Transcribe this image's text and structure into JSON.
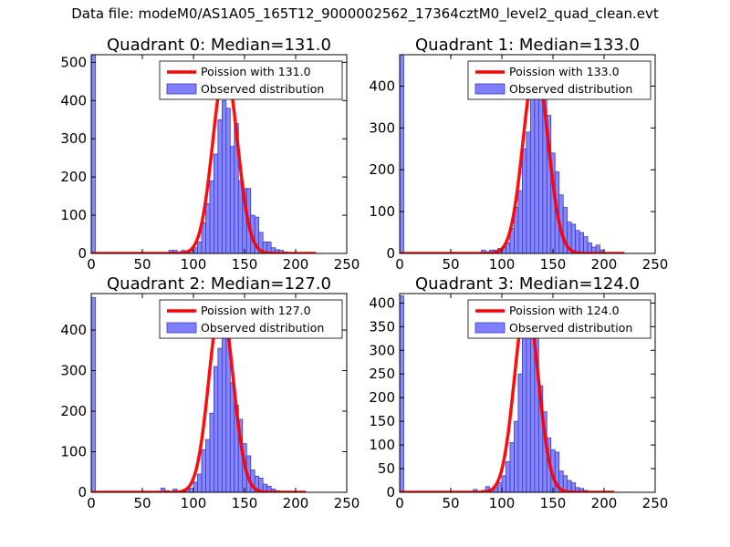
{
  "figure": {
    "suptitle": "Data file: modeM0/AS1A05_165T12_9000002562_17364cztM0_level2_quad_clean.evt",
    "colors": {
      "bar_fill": "#7f7fff",
      "bar_edge": "#3a3ac0",
      "poisson_line": "#ff0000",
      "axes": "#000000"
    }
  },
  "chart_data": [
    {
      "type": "bar",
      "title": "Quadrant 0: Median=131.0",
      "median": 131.0,
      "xlim": [
        0,
        250
      ],
      "ylim": [
        0,
        520
      ],
      "xticks": [
        0,
        50,
        100,
        150,
        200,
        250
      ],
      "yticks": [
        0,
        100,
        200,
        300,
        400,
        500
      ],
      "legend": {
        "position": "top-right",
        "line_label": "Poission with 131.0",
        "bar_label": "Observed distribution"
      },
      "bin_width": 4,
      "bins": [
        {
          "x": 0,
          "y": 520
        },
        {
          "x": 76,
          "y": 8
        },
        {
          "x": 80,
          "y": 8
        },
        {
          "x": 84,
          "y": 4
        },
        {
          "x": 88,
          "y": 8
        },
        {
          "x": 92,
          "y": 4
        },
        {
          "x": 96,
          "y": 8
        },
        {
          "x": 100,
          "y": 15
        },
        {
          "x": 104,
          "y": 30
        },
        {
          "x": 108,
          "y": 80
        },
        {
          "x": 112,
          "y": 130
        },
        {
          "x": 116,
          "y": 190
        },
        {
          "x": 120,
          "y": 260
        },
        {
          "x": 124,
          "y": 350
        },
        {
          "x": 128,
          "y": 400
        },
        {
          "x": 132,
          "y": 380
        },
        {
          "x": 136,
          "y": 280
        },
        {
          "x": 140,
          "y": 340
        },
        {
          "x": 144,
          "y": 190
        },
        {
          "x": 148,
          "y": 170
        },
        {
          "x": 152,
          "y": 170
        },
        {
          "x": 156,
          "y": 100
        },
        {
          "x": 160,
          "y": 95
        },
        {
          "x": 164,
          "y": 55
        },
        {
          "x": 168,
          "y": 30
        },
        {
          "x": 172,
          "y": 30
        },
        {
          "x": 176,
          "y": 15
        },
        {
          "x": 180,
          "y": 10
        },
        {
          "x": 184,
          "y": 8
        },
        {
          "x": 188,
          "y": 4
        }
      ],
      "poisson": {
        "mean": 131.0,
        "peak": 485,
        "x_range": [
          0,
          220
        ]
      }
    },
    {
      "type": "bar",
      "title": "Quadrant 1: Median=133.0",
      "median": 133.0,
      "xlim": [
        0,
        250
      ],
      "ylim": [
        0,
        475
      ],
      "xticks": [
        0,
        50,
        100,
        150,
        200,
        250
      ],
      "yticks": [
        0,
        100,
        200,
        300,
        400
      ],
      "legend": {
        "position": "top-right",
        "line_label": "Poission with 133.0",
        "bar_label": "Observed distribution"
      },
      "bin_width": 4,
      "bins": [
        {
          "x": 0,
          "y": 475
        },
        {
          "x": 80,
          "y": 8
        },
        {
          "x": 84,
          "y": 4
        },
        {
          "x": 88,
          "y": 8
        },
        {
          "x": 92,
          "y": 8
        },
        {
          "x": 96,
          "y": 12
        },
        {
          "x": 100,
          "y": 15
        },
        {
          "x": 104,
          "y": 25
        },
        {
          "x": 108,
          "y": 60
        },
        {
          "x": 112,
          "y": 110
        },
        {
          "x": 116,
          "y": 150
        },
        {
          "x": 120,
          "y": 250
        },
        {
          "x": 124,
          "y": 290
        },
        {
          "x": 128,
          "y": 410
        },
        {
          "x": 132,
          "y": 460
        },
        {
          "x": 136,
          "y": 440
        },
        {
          "x": 140,
          "y": 380
        },
        {
          "x": 144,
          "y": 330
        },
        {
          "x": 148,
          "y": 240
        },
        {
          "x": 152,
          "y": 195
        },
        {
          "x": 156,
          "y": 140
        },
        {
          "x": 160,
          "y": 110
        },
        {
          "x": 164,
          "y": 75
        },
        {
          "x": 168,
          "y": 70
        },
        {
          "x": 172,
          "y": 55
        },
        {
          "x": 176,
          "y": 50
        },
        {
          "x": 180,
          "y": 40
        },
        {
          "x": 184,
          "y": 25
        },
        {
          "x": 188,
          "y": 15
        },
        {
          "x": 192,
          "y": 20
        },
        {
          "x": 196,
          "y": 8
        }
      ],
      "poisson": {
        "mean": 133.0,
        "peak": 450,
        "x_range": [
          0,
          220
        ]
      }
    },
    {
      "type": "bar",
      "title": "Quadrant 2: Median=127.0",
      "median": 127.0,
      "xlim": [
        0,
        250
      ],
      "ylim": [
        0,
        490
      ],
      "xticks": [
        0,
        50,
        100,
        150,
        200,
        250
      ],
      "yticks": [
        0,
        100,
        200,
        300,
        400
      ],
      "legend": {
        "position": "top-right",
        "line_label": "Poission with 127.0",
        "bar_label": "Observed distribution"
      },
      "bin_width": 4,
      "bins": [
        {
          "x": 0,
          "y": 480
        },
        {
          "x": 68,
          "y": 10
        },
        {
          "x": 72,
          "y": 4
        },
        {
          "x": 80,
          "y": 8
        },
        {
          "x": 88,
          "y": 4
        },
        {
          "x": 92,
          "y": 8
        },
        {
          "x": 96,
          "y": 10
        },
        {
          "x": 100,
          "y": 25
        },
        {
          "x": 104,
          "y": 45
        },
        {
          "x": 108,
          "y": 105
        },
        {
          "x": 112,
          "y": 130
        },
        {
          "x": 116,
          "y": 195
        },
        {
          "x": 120,
          "y": 310
        },
        {
          "x": 124,
          "y": 355
        },
        {
          "x": 128,
          "y": 410
        },
        {
          "x": 132,
          "y": 395
        },
        {
          "x": 136,
          "y": 270
        },
        {
          "x": 140,
          "y": 215
        },
        {
          "x": 144,
          "y": 180
        },
        {
          "x": 148,
          "y": 120
        },
        {
          "x": 152,
          "y": 90
        },
        {
          "x": 156,
          "y": 55
        },
        {
          "x": 160,
          "y": 40
        },
        {
          "x": 164,
          "y": 35
        },
        {
          "x": 168,
          "y": 20
        },
        {
          "x": 172,
          "y": 15
        },
        {
          "x": 176,
          "y": 8
        },
        {
          "x": 180,
          "y": 4
        }
      ],
      "poisson": {
        "mean": 127.0,
        "peak": 465,
        "x_range": [
          0,
          210
        ]
      }
    },
    {
      "type": "bar",
      "title": "Quadrant 3: Median=124.0",
      "median": 124.0,
      "xlim": [
        0,
        250
      ],
      "ylim": [
        0,
        420
      ],
      "xticks": [
        0,
        50,
        100,
        150,
        200,
        250
      ],
      "yticks": [
        0,
        50,
        100,
        150,
        200,
        250,
        300,
        350,
        400
      ],
      "legend": {
        "position": "top-right",
        "line_label": "Poission with 124.0",
        "bar_label": "Observed distribution"
      },
      "bin_width": 4,
      "bins": [
        {
          "x": 0,
          "y": 415
        },
        {
          "x": 72,
          "y": 6
        },
        {
          "x": 80,
          "y": 4
        },
        {
          "x": 84,
          "y": 12
        },
        {
          "x": 88,
          "y": 6
        },
        {
          "x": 92,
          "y": 10
        },
        {
          "x": 96,
          "y": 20
        },
        {
          "x": 100,
          "y": 35
        },
        {
          "x": 104,
          "y": 65
        },
        {
          "x": 108,
          "y": 105
        },
        {
          "x": 112,
          "y": 150
        },
        {
          "x": 116,
          "y": 250
        },
        {
          "x": 120,
          "y": 370
        },
        {
          "x": 124,
          "y": 400
        },
        {
          "x": 128,
          "y": 370
        },
        {
          "x": 132,
          "y": 345
        },
        {
          "x": 136,
          "y": 225
        },
        {
          "x": 140,
          "y": 170
        },
        {
          "x": 144,
          "y": 115
        },
        {
          "x": 148,
          "y": 90
        },
        {
          "x": 152,
          "y": 85
        },
        {
          "x": 156,
          "y": 45
        },
        {
          "x": 160,
          "y": 35
        },
        {
          "x": 164,
          "y": 25
        },
        {
          "x": 168,
          "y": 20
        },
        {
          "x": 172,
          "y": 10
        },
        {
          "x": 176,
          "y": 8
        },
        {
          "x": 180,
          "y": 4
        }
      ],
      "poisson": {
        "mean": 124.0,
        "peak": 400,
        "x_range": [
          0,
          210
        ]
      }
    }
  ]
}
